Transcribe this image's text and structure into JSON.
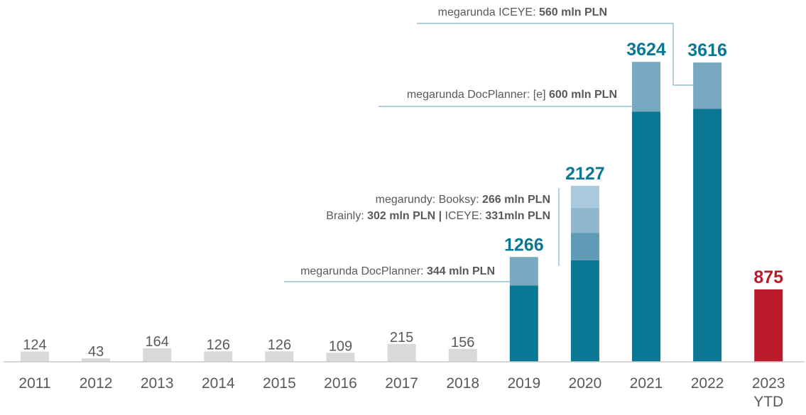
{
  "chart_data": {
    "type": "bar",
    "stacked": true,
    "categories": [
      "2011",
      "2012",
      "2013",
      "2014",
      "2015",
      "2016",
      "2017",
      "2018",
      "2019",
      "2020",
      "2021",
      "2022",
      "2023|YTD"
    ],
    "totals": [
      124,
      43,
      164,
      126,
      126,
      109,
      215,
      156,
      1266,
      2127,
      3624,
      3616,
      875
    ],
    "total_labels": [
      "124",
      "43",
      "164",
      "126",
      "126",
      "109",
      "215",
      "156",
      "1266",
      "2127",
      "3624",
      "3616",
      "875"
    ],
    "segments": [
      [
        124
      ],
      [
        43
      ],
      [
        164
      ],
      [
        126
      ],
      [
        126
      ],
      [
        109
      ],
      [
        215
      ],
      [
        156
      ],
      [
        922,
        344
      ],
      [
        1228,
        331,
        302,
        266
      ],
      [
        3024,
        600
      ],
      [
        3056,
        560
      ],
      [
        875
      ]
    ],
    "bar_colors": [
      [
        "#d9d9d9"
      ],
      [
        "#d9d9d9"
      ],
      [
        "#d9d9d9"
      ],
      [
        "#d9d9d9"
      ],
      [
        "#d9d9d9"
      ],
      [
        "#d9d9d9"
      ],
      [
        "#d9d9d9"
      ],
      [
        "#d9d9d9"
      ],
      [
        "#0a7794",
        "#78a9c1"
      ],
      [
        "#0a7794",
        "#5f9bb5",
        "#8fb7cd",
        "#a9c9dc"
      ],
      [
        "#0a7794",
        "#78a9c1"
      ],
      [
        "#0a7794",
        "#78a9c1"
      ],
      [
        "#bb1a2a"
      ]
    ],
    "label_colors": [
      "#595959",
      "#595959",
      "#595959",
      "#595959",
      "#595959",
      "#595959",
      "#595959",
      "#595959",
      "#0a7794",
      "#0a7794",
      "#0a7794",
      "#0a7794",
      "#bb1a2a"
    ],
    "ylim": [
      0,
      4200
    ],
    "grid": false,
    "annotations": [
      {
        "bar": 8,
        "lines": [
          [
            {
              "t": "megarunda DocPlanner: ",
              "b": false
            },
            {
              "t": "344 mln PLN",
              "b": true
            }
          ]
        ]
      },
      {
        "bar": 9,
        "lines": [
          [
            {
              "t": "megarundy: Booksy: ",
              "b": false
            },
            {
              "t": "266 mln PLN",
              "b": true
            }
          ],
          [
            {
              "t": "Brainly: ",
              "b": false
            },
            {
              "t": "302 mln PLN | ",
              "b": true
            },
            {
              "t": "ICEYE: ",
              "b": false
            },
            {
              "t": "331mln PLN",
              "b": true
            }
          ]
        ]
      },
      {
        "bar": 10,
        "lines": [
          [
            {
              "t": "megarunda DocPlanner: [e] ",
              "b": false
            },
            {
              "t": "600 mln PLN",
              "b": true
            }
          ]
        ]
      },
      {
        "bar": 11,
        "lines": [
          [
            {
              "t": "megarunda ICEYE: ",
              "b": false
            },
            {
              "t": "560 mln PLN",
              "b": true
            }
          ]
        ]
      }
    ],
    "colors": {
      "axis": "#c8c8c8",
      "leader": "#7fb0c8",
      "text": "#595959"
    }
  }
}
